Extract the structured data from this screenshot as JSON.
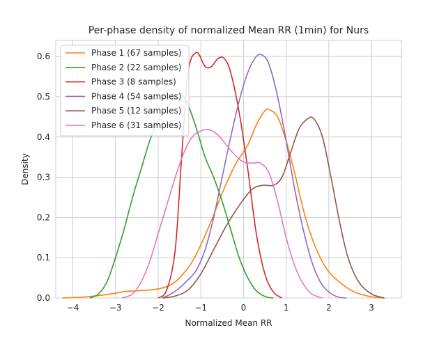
{
  "chart_data": {
    "type": "line",
    "title": "Per-phase density of normalized Mean RR (1min) for Nurs",
    "xlabel": "Normalized Mean RR",
    "ylabel": "Density",
    "xlim": [
      -4.4,
      3.7
    ],
    "ylim": [
      0,
      0.64
    ],
    "xticks": [
      -4,
      -3,
      -2,
      -1,
      0,
      1,
      2,
      3
    ],
    "xtick_labels": [
      "−4",
      "−3",
      "−2",
      "−1",
      "0",
      "1",
      "2",
      "3"
    ],
    "yticks": [
      0.0,
      0.1,
      0.2,
      0.3,
      0.4,
      0.5,
      0.6
    ],
    "ytick_labels": [
      "0.0",
      "0.1",
      "0.2",
      "0.3",
      "0.4",
      "0.5",
      "0.6"
    ],
    "grid": true,
    "legend_position": "upper-left",
    "series": [
      {
        "name": "Phase 1 (67 samples)",
        "color": "#ff7f0e",
        "points": [
          [
            -4.25,
            0.0
          ],
          [
            -3.8,
            0.002
          ],
          [
            -3.4,
            0.006
          ],
          [
            -3.0,
            0.012
          ],
          [
            -2.8,
            0.016
          ],
          [
            -2.5,
            0.018
          ],
          [
            -2.2,
            0.02
          ],
          [
            -1.9,
            0.025
          ],
          [
            -1.6,
            0.04
          ],
          [
            -1.3,
            0.075
          ],
          [
            -1.1,
            0.11
          ],
          [
            -0.8,
            0.18
          ],
          [
            -0.5,
            0.26
          ],
          [
            -0.2,
            0.33
          ],
          [
            0.1,
            0.38
          ],
          [
            0.3,
            0.43
          ],
          [
            0.5,
            0.465
          ],
          [
            0.6,
            0.468
          ],
          [
            0.8,
            0.45
          ],
          [
            1.0,
            0.39
          ],
          [
            1.2,
            0.31
          ],
          [
            1.4,
            0.22
          ],
          [
            1.6,
            0.15
          ],
          [
            1.8,
            0.1
          ],
          [
            2.0,
            0.065
          ],
          [
            2.3,
            0.035
          ],
          [
            2.6,
            0.015
          ],
          [
            3.0,
            0.003
          ],
          [
            3.3,
            0.0
          ]
        ]
      },
      {
        "name": "Phase 2 (22 samples)",
        "color": "#2ca02c",
        "points": [
          [
            -3.6,
            0.0
          ],
          [
            -3.4,
            0.01
          ],
          [
            -3.2,
            0.04
          ],
          [
            -3.0,
            0.1
          ],
          [
            -2.8,
            0.17
          ],
          [
            -2.6,
            0.25
          ],
          [
            -2.4,
            0.32
          ],
          [
            -2.2,
            0.39
          ],
          [
            -2.0,
            0.44
          ],
          [
            -1.8,
            0.47
          ],
          [
            -1.6,
            0.5
          ],
          [
            -1.45,
            0.505
          ],
          [
            -1.3,
            0.48
          ],
          [
            -1.1,
            0.42
          ],
          [
            -0.9,
            0.35
          ],
          [
            -0.7,
            0.3
          ],
          [
            -0.5,
            0.24
          ],
          [
            -0.3,
            0.17
          ],
          [
            -0.1,
            0.1
          ],
          [
            0.1,
            0.05
          ],
          [
            0.3,
            0.018
          ],
          [
            0.5,
            0.004
          ],
          [
            0.7,
            0.0
          ]
        ]
      },
      {
        "name": "Phase 3 (8 samples)",
        "color": "#d62728",
        "points": [
          [
            -2.0,
            0.0
          ],
          [
            -1.8,
            0.02
          ],
          [
            -1.6,
            0.12
          ],
          [
            -1.45,
            0.35
          ],
          [
            -1.3,
            0.56
          ],
          [
            -1.1,
            0.61
          ],
          [
            -0.9,
            0.575
          ],
          [
            -0.75,
            0.575
          ],
          [
            -0.6,
            0.595
          ],
          [
            -0.45,
            0.595
          ],
          [
            -0.3,
            0.56
          ],
          [
            -0.1,
            0.46
          ],
          [
            0.1,
            0.32
          ],
          [
            0.3,
            0.16
          ],
          [
            0.5,
            0.06
          ],
          [
            0.7,
            0.015
          ],
          [
            0.9,
            0.0
          ]
        ]
      },
      {
        "name": "Phase 4 (54 samples)",
        "color": "#9467bd",
        "points": [
          [
            -1.9,
            0.0
          ],
          [
            -1.7,
            0.01
          ],
          [
            -1.5,
            0.025
          ],
          [
            -1.3,
            0.045
          ],
          [
            -1.1,
            0.07
          ],
          [
            -0.9,
            0.12
          ],
          [
            -0.7,
            0.2
          ],
          [
            -0.5,
            0.3
          ],
          [
            -0.3,
            0.4
          ],
          [
            -0.1,
            0.49
          ],
          [
            0.1,
            0.56
          ],
          [
            0.3,
            0.6
          ],
          [
            0.45,
            0.603
          ],
          [
            0.6,
            0.58
          ],
          [
            0.8,
            0.5
          ],
          [
            1.0,
            0.39
          ],
          [
            1.2,
            0.27
          ],
          [
            1.4,
            0.17
          ],
          [
            1.6,
            0.09
          ],
          [
            1.8,
            0.04
          ],
          [
            2.0,
            0.015
          ],
          [
            2.2,
            0.003
          ],
          [
            2.4,
            0.0
          ]
        ]
      },
      {
        "name": "Phase 5 (12 samples)",
        "color": "#8c564b",
        "points": [
          [
            -1.9,
            0.0
          ],
          [
            -1.6,
            0.005
          ],
          [
            -1.3,
            0.02
          ],
          [
            -1.0,
            0.06
          ],
          [
            -0.7,
            0.12
          ],
          [
            -0.4,
            0.18
          ],
          [
            -0.1,
            0.23
          ],
          [
            0.2,
            0.27
          ],
          [
            0.45,
            0.28
          ],
          [
            0.7,
            0.28
          ],
          [
            0.9,
            0.3
          ],
          [
            1.1,
            0.36
          ],
          [
            1.3,
            0.42
          ],
          [
            1.5,
            0.445
          ],
          [
            1.65,
            0.445
          ],
          [
            1.85,
            0.4
          ],
          [
            2.05,
            0.3
          ],
          [
            2.25,
            0.19
          ],
          [
            2.45,
            0.1
          ],
          [
            2.7,
            0.04
          ],
          [
            3.0,
            0.01
          ],
          [
            3.3,
            0.0
          ]
        ]
      },
      {
        "name": "Phase 6 (31 samples)",
        "color": "#e377c2",
        "points": [
          [
            -2.85,
            0.0
          ],
          [
            -2.6,
            0.01
          ],
          [
            -2.4,
            0.04
          ],
          [
            -2.2,
            0.09
          ],
          [
            -2.0,
            0.16
          ],
          [
            -1.8,
            0.23
          ],
          [
            -1.6,
            0.3
          ],
          [
            -1.4,
            0.36
          ],
          [
            -1.2,
            0.4
          ],
          [
            -1.0,
            0.415
          ],
          [
            -0.8,
            0.418
          ],
          [
            -0.6,
            0.405
          ],
          [
            -0.4,
            0.38
          ],
          [
            -0.2,
            0.355
          ],
          [
            0.0,
            0.338
          ],
          [
            0.2,
            0.335
          ],
          [
            0.4,
            0.335
          ],
          [
            0.6,
            0.31
          ],
          [
            0.8,
            0.24
          ],
          [
            1.0,
            0.15
          ],
          [
            1.2,
            0.08
          ],
          [
            1.4,
            0.035
          ],
          [
            1.6,
            0.01
          ],
          [
            1.85,
            0.0
          ]
        ]
      }
    ]
  }
}
